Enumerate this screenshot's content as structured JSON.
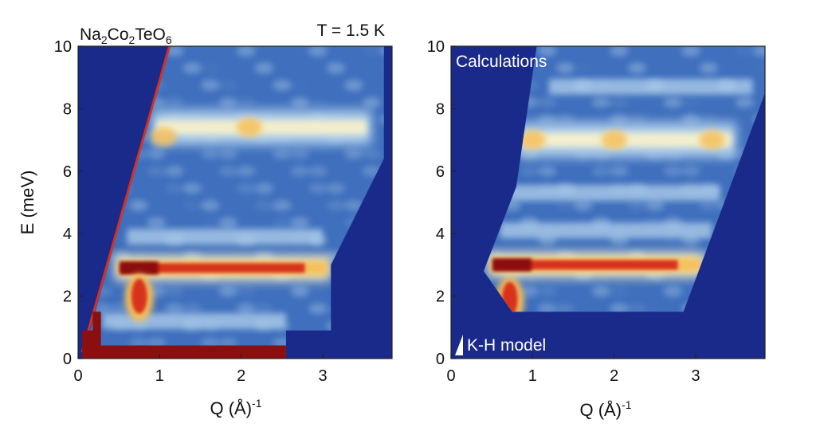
{
  "chart_data": [
    {
      "type": "heatmap",
      "title": "Na₂Co₂TeO₆",
      "annotation": "T = 1.5 K",
      "xlabel": "Q (Å)⁻¹",
      "ylabel": "E (meV)",
      "xlim": [
        0,
        3.85
      ],
      "ylim": [
        0,
        10
      ],
      "xticks": [
        0,
        1,
        2,
        3
      ],
      "yticks": [
        0,
        2,
        4,
        6,
        8,
        10
      ],
      "colormap": [
        "#1a2a8a",
        "#3f6fbd",
        "#b3d2ec",
        "#fff5c8",
        "#f6c05a",
        "#d7301f",
        "#8b0f0f"
      ],
      "background_color": "#1a2a8a",
      "bands": [
        {
          "E": 2.9,
          "Q_range": [
            0.45,
            3.1
          ],
          "intensity": "strong"
        },
        {
          "E": 7.4,
          "Q_range": [
            0.9,
            3.6
          ],
          "intensity": "medium"
        },
        {
          "E": 3.9,
          "Q_range": [
            0.6,
            3.0
          ],
          "intensity": "weak"
        },
        {
          "E": 1.2,
          "Q_range": [
            0.3,
            2.55
          ],
          "intensity": "weak"
        },
        {
          "E": 0.3,
          "Q_range": [
            0.05,
            2.55
          ],
          "intensity": "elastic"
        }
      ],
      "hotspots": [
        {
          "Q": 0.75,
          "E": 2.1,
          "intensity": "strong"
        },
        {
          "Q": 1.05,
          "E": 7.1,
          "intensity": "medium"
        },
        {
          "Q": 2.1,
          "E": 7.4,
          "intensity": "medium"
        }
      ]
    },
    {
      "type": "heatmap",
      "title": "Calculations",
      "annotation": "K-H model",
      "xlabel": "Q (Å)⁻¹",
      "ylabel": "",
      "xlim": [
        0,
        3.85
      ],
      "ylim": [
        0,
        10
      ],
      "xticks": [
        0,
        1,
        2,
        3
      ],
      "yticks": [
        0,
        2,
        4,
        6,
        8,
        10
      ],
      "colormap": [
        "#1a2a8a",
        "#3f6fbd",
        "#b3d2ec",
        "#fff5c8",
        "#f6c05a",
        "#d7301f",
        "#8b0f0f"
      ],
      "background_color": "#1a2a8a",
      "bands": [
        {
          "E": 3.0,
          "Q_range": [
            0.45,
            3.1
          ],
          "intensity": "strong"
        },
        {
          "E": 7.0,
          "Q_range": [
            0.8,
            3.5
          ],
          "intensity": "medium"
        },
        {
          "E": 4.1,
          "Q_range": [
            0.6,
            3.2
          ],
          "intensity": "weak"
        },
        {
          "E": 5.3,
          "Q_range": [
            0.7,
            3.3
          ],
          "intensity": "weak"
        },
        {
          "E": 8.7,
          "Q_range": [
            1.2,
            3.7
          ],
          "intensity": "weak"
        }
      ],
      "hotspots": [
        {
          "Q": 0.72,
          "E": 2.0,
          "intensity": "strong"
        },
        {
          "Q": 1.0,
          "E": 7.0,
          "intensity": "medium"
        },
        {
          "Q": 2.0,
          "E": 7.0,
          "intensity": "medium"
        },
        {
          "Q": 3.2,
          "E": 7.0,
          "intensity": "medium"
        }
      ]
    }
  ]
}
